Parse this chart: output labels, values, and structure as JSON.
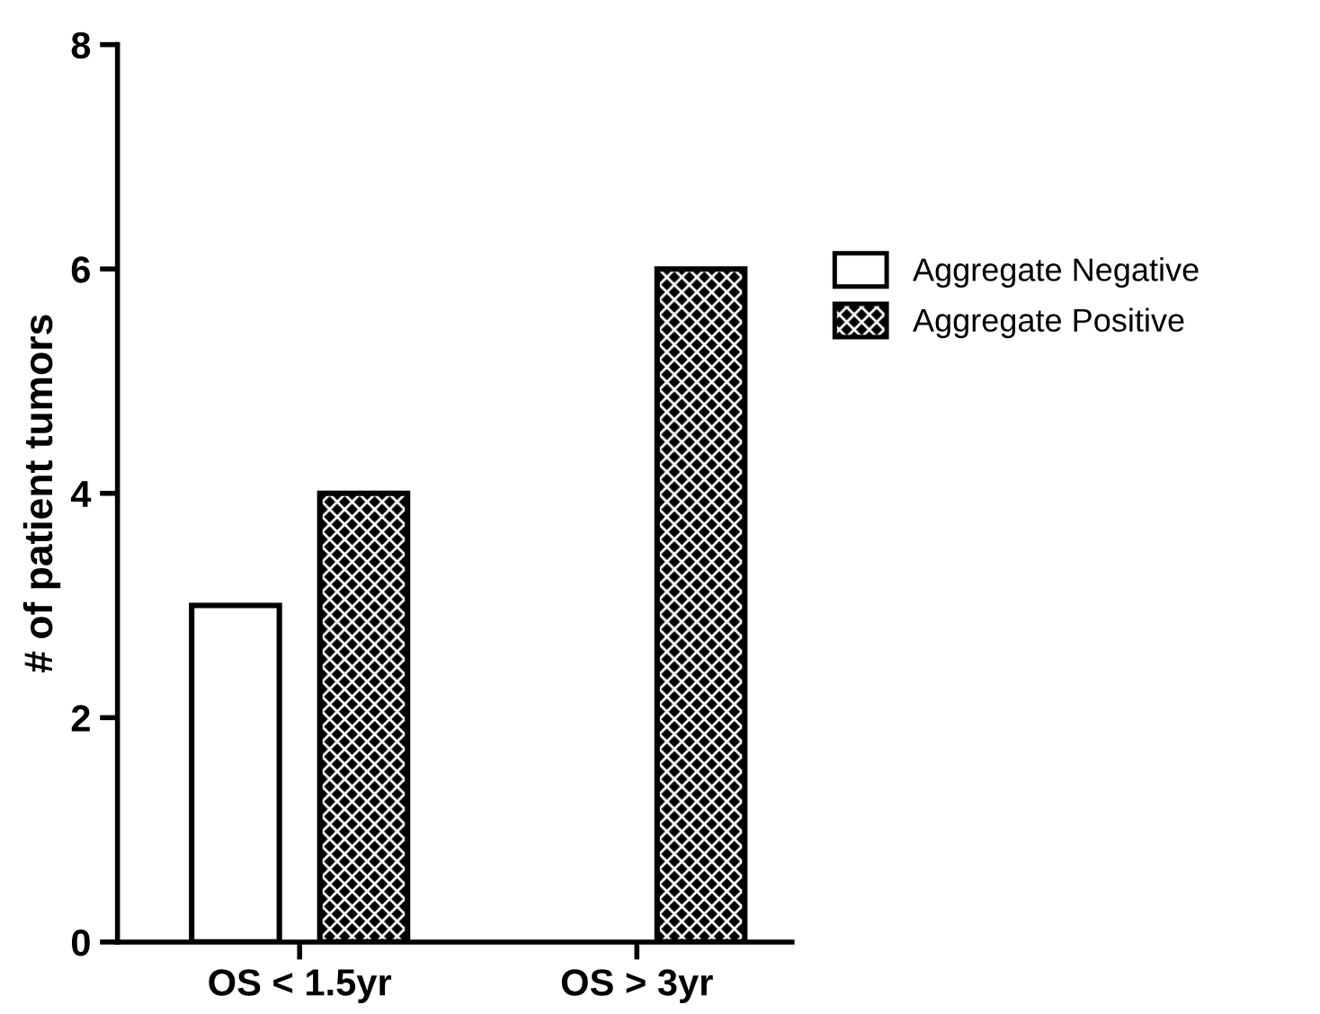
{
  "chart_data": {
    "type": "bar",
    "ylabel": "# of patient tumors",
    "categories": [
      "OS < 1.5yr",
      "OS > 3yr"
    ],
    "series": [
      {
        "name": "Aggregate Negative",
        "color": "#ffffff",
        "values": [
          3,
          0
        ]
      },
      {
        "name": "Aggregate Positive",
        "color": "#000000",
        "values": [
          4,
          6
        ]
      }
    ],
    "ylim": [
      0,
      8
    ],
    "yticks": [
      0,
      2,
      4,
      6,
      8
    ],
    "grid": false,
    "legend": "top right"
  }
}
